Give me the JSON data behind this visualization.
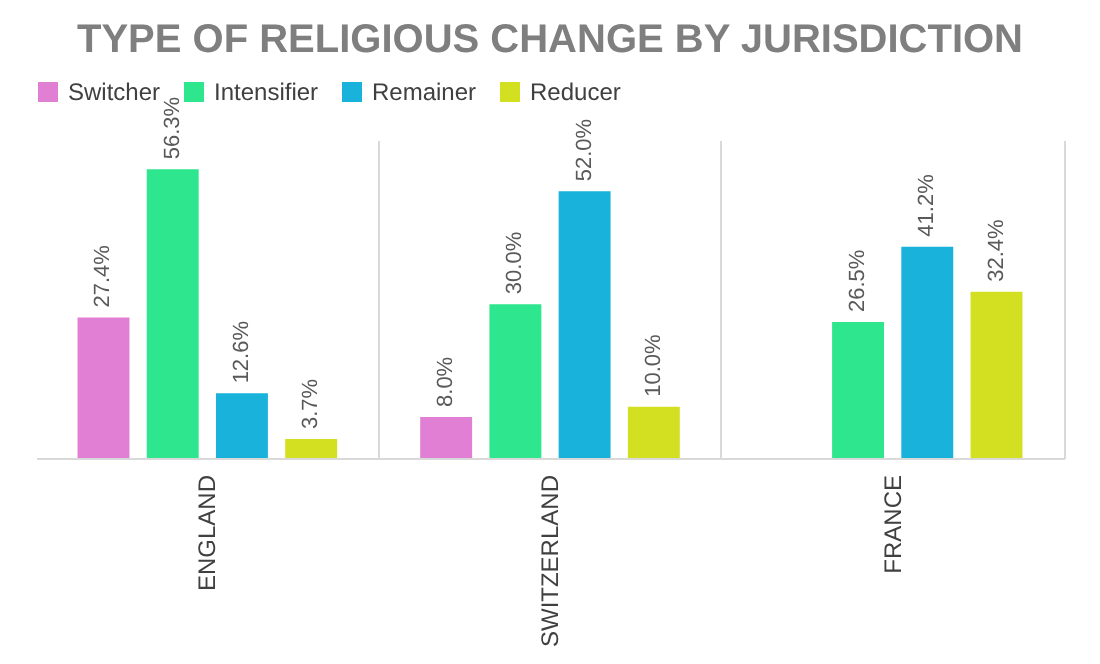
{
  "chart_data": {
    "type": "bar",
    "title": "TYPE OF RELIGIOUS CHANGE BY JURISDICTION",
    "categories": [
      "ENGLAND",
      "SWITZERLAND",
      "FRANCE"
    ],
    "series": [
      {
        "name": "Switcher",
        "color": "#e07fd4",
        "values": [
          27.4,
          8.0,
          null
        ],
        "value_labels": [
          "27.4%",
          "8.0%",
          null
        ]
      },
      {
        "name": "Intensifier",
        "color": "#2ee68e",
        "values": [
          56.3,
          30.0,
          26.5
        ],
        "value_labels": [
          "56.3%",
          "30.0%",
          "26.5%"
        ]
      },
      {
        "name": "Remainer",
        "color": "#19b2da",
        "values": [
          12.6,
          52.0,
          41.2
        ],
        "value_labels": [
          "12.6%",
          "52.0%",
          "41.2%"
        ]
      },
      {
        "name": "Reducer",
        "color": "#d3e021",
        "values": [
          3.7,
          10.0,
          32.4
        ],
        "value_labels": [
          "3.7%",
          "10.0%",
          "32.4%"
        ]
      }
    ],
    "ylim": [
      0,
      62
    ],
    "grid": "x",
    "legend": "top",
    "tick_labels": "x"
  }
}
